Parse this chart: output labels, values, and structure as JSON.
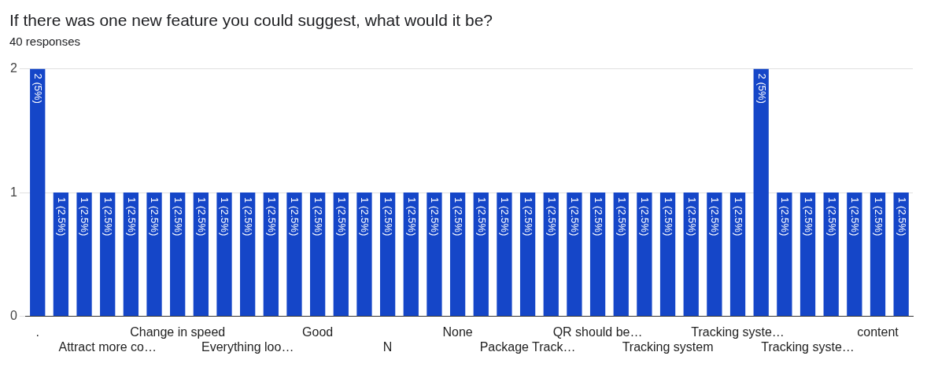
{
  "chart_data": {
    "type": "bar",
    "title": "If there was one new feature you could suggest, what would it be?",
    "subtitle": "40 responses",
    "categories": [
      ".",
      null,
      null,
      "Attract more co…",
      null,
      null,
      "Change in speed",
      null,
      null,
      "Everything loo…",
      null,
      null,
      "Good",
      null,
      null,
      "N",
      null,
      null,
      "None",
      null,
      null,
      "Package Track…",
      null,
      null,
      "QR should be…",
      null,
      null,
      "Tracking system",
      null,
      null,
      "Tracking syste…",
      null,
      null,
      "Tracking syste…",
      null,
      null,
      "content",
      null
    ],
    "values": [
      2,
      1,
      1,
      1,
      1,
      1,
      1,
      1,
      1,
      1,
      1,
      1,
      1,
      1,
      1,
      1,
      1,
      1,
      1,
      1,
      1,
      1,
      1,
      1,
      1,
      1,
      1,
      1,
      1,
      1,
      1,
      2,
      1,
      1,
      1,
      1,
      1,
      1
    ],
    "value_labels": [
      "2 (5%)",
      "1 (2.5%)",
      "1 (2.5%)",
      "1 (2.5%)",
      "1 (2.5%)",
      "1 (2.5%)",
      "1 (2.5%)",
      "1 (2.5%)",
      "1 (2.5%)",
      "1 (2.5%)",
      "1 (2.5%)",
      "1 (2.5%)",
      "1 (2.5%)",
      "1 (2.5%)",
      "1 (2.5%)",
      "1 (2.5%)",
      "1 (2.5%)",
      "1 (2.5%)",
      "1 (2.5%)",
      "1 (2.5%)",
      "1 (2.5%)",
      "1 (2.5%)",
      "1 (2.5%)",
      "1 (2.5%)",
      "1 (2.5%)",
      "1 (2.5%)",
      "1 (2.5%)",
      "1 (2.5%)",
      "1 (2.5%)",
      "1 (2.5%)",
      "1 (2.5%)",
      "2 (5%)",
      "1 (2.5%)",
      "1 (2.5%)",
      "1 (2.5%)",
      "1 (2.5%)",
      "1 (2.5%)",
      "1 (2.5%)"
    ],
    "color": "#1546c8",
    "ylim": [
      0,
      2
    ],
    "yticks": [
      0,
      1,
      2
    ],
    "grid": "y",
    "legend": false
  }
}
